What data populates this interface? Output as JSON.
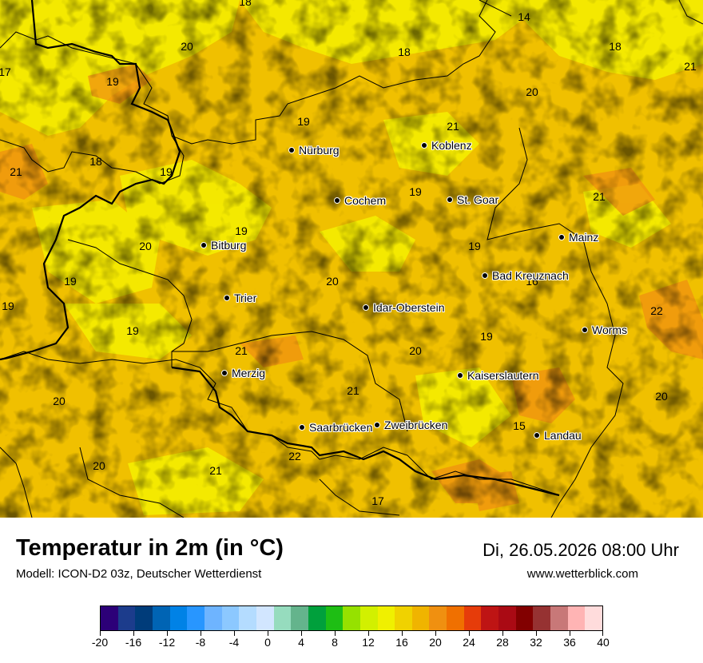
{
  "title": "Temperatur in 2m (in °C)",
  "model": "Modell: ICON-D2 03z, Deutscher Wetterdienst",
  "datetime": "Di, 26.05.2026 08:00 Uhr",
  "website": "www.wetterblick.com",
  "colors": {
    "base": "#f0c000",
    "warm": "#f09010",
    "cool": "#f5f000",
    "border": "#000000"
  },
  "cities": [
    {
      "name": "Nürburg"
    },
    {
      "name": "Koblenz"
    },
    {
      "name": "Cochem"
    },
    {
      "name": "St. Goar"
    },
    {
      "name": "Mainz"
    },
    {
      "name": "Bitburg"
    },
    {
      "name": "Bad Kreuznach"
    },
    {
      "name": "Trier"
    },
    {
      "name": "Idar-Oberstein"
    },
    {
      "name": "Worms"
    },
    {
      "name": "Merzig"
    },
    {
      "name": "Kaiserslautern"
    },
    {
      "name": "Saarbrücken"
    },
    {
      "name": "Zweibrücken"
    },
    {
      "name": "Landau"
    }
  ],
  "values": [
    "18",
    "14",
    "20",
    "18",
    "18",
    "17",
    "21",
    "19",
    "20",
    "19",
    "21",
    "18",
    "19",
    "21",
    "19",
    "19",
    "20",
    "19",
    "16",
    "20",
    "22",
    "19",
    "19",
    "21",
    "20",
    "19",
    "19",
    "21",
    "20",
    "21",
    "20",
    "21",
    "22",
    "20",
    "15",
    "17"
  ],
  "scale": {
    "ticks": [
      "-20",
      "-16",
      "-12",
      "-8",
      "-4",
      "0",
      "4",
      "8",
      "12",
      "16",
      "20",
      "24",
      "28",
      "32",
      "36",
      "40"
    ],
    "colors": [
      "#2c0078",
      "#1c3c8c",
      "#003c7a",
      "#0064b4",
      "#0082e6",
      "#2896ff",
      "#6eb4ff",
      "#8cc8ff",
      "#b4dcff",
      "#d2e6ff",
      "#96dcbe",
      "#64b48c",
      "#00a03c",
      "#1ebe14",
      "#96e100",
      "#d2f000",
      "#f0f000",
      "#f0d200",
      "#f0b400",
      "#f09010",
      "#f07000",
      "#e63c0a",
      "#be1414",
      "#aa0a14",
      "#820000",
      "#963232",
      "#c87878",
      "#ffb4b4",
      "#ffdcdc"
    ]
  }
}
